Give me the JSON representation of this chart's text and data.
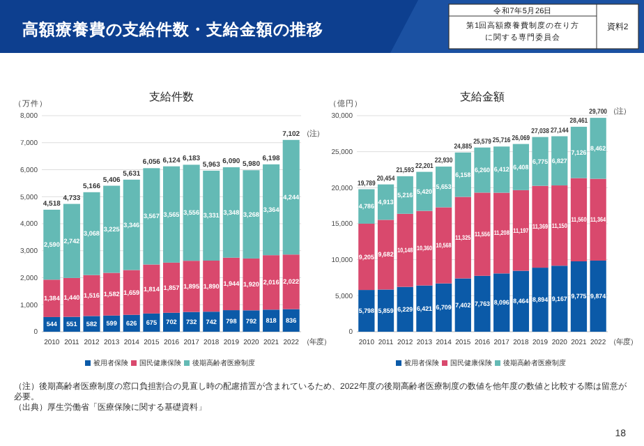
{
  "chart_data": [
    {
      "type": "other",
      "title": "高額療養費の支給件数・支給金額の推移",
      "annotations": [
        "令和7年5月26日",
        "第1回高額療養費制度の在り方に関する専門委員会",
        "資料2",
        "（注）後期高齢者医療制度の窓口負担割合の見直し時の配慮措置が含まれているため、2022年度の後期高齢者医療制度の数値を他年度の数値と比較する際は留意が必要。",
        "（出典）厚生労働省「医療保険に関する基礎資料」",
        "18"
      ]
    },
    {
      "type": "bar",
      "title": "支給件数",
      "ylabel": "（万件）",
      "xlabel": "（年度）",
      "stacked": true,
      "legend": "bottom",
      "grid": "y",
      "categories": [
        "2010",
        "2011",
        "2012",
        "2013",
        "2014",
        "2015",
        "2016",
        "2017",
        "2018",
        "2019",
        "2020",
        "2021",
        "2022"
      ],
      "ylim": [
        0,
        8000
      ],
      "yticks": [
        0,
        {
          "value": 1000,
          "label": "1,000"
        },
        {
          "value": 2000,
          "label": "2,000"
        },
        {
          "value": 3000,
          "label": "3,000"
        },
        {
          "value": 4000,
          "label": "4,000"
        },
        {
          "value": 5000,
          "label": "5,000"
        },
        {
          "value": 6000,
          "label": "6,000"
        },
        {
          "value": 7000,
          "label": "7,000"
        },
        {
          "value": 8000,
          "label": "8,000"
        }
      ],
      "series": [
        {
          "name": "被用者保険",
          "color": "#0b5aa8",
          "values": [
            544,
            551,
            582,
            599,
            626,
            675,
            702,
            732,
            742,
            798,
            792,
            818,
            836
          ],
          "value_labels": [
            "544",
            "551",
            "582",
            "599",
            "626",
            "675",
            "702",
            "732",
            "742",
            "798",
            "792",
            "818",
            "836"
          ]
        },
        {
          "name": "国民健康保険",
          "color": "#d9496d",
          "values": [
            1384,
            1440,
            1516,
            1582,
            1659,
            1814,
            1857,
            1895,
            1890,
            1944,
            1920,
            2016,
            2022
          ],
          "value_labels": [
            "1,384",
            "1,440",
            "1,516",
            "1,582",
            "1,659",
            "1,814",
            "1,857",
            "1,895",
            "1,890",
            "1,944",
            "1,920",
            "2,016",
            "2,022"
          ]
        },
        {
          "name": "後期高齢者医療制度",
          "color": "#64bab5",
          "values": [
            2590,
            2742,
            3068,
            3225,
            3346,
            3567,
            3565,
            3556,
            3331,
            3348,
            3268,
            3364,
            4244
          ],
          "value_labels": [
            "2,590",
            "2,742",
            "3,068",
            "3,225",
            "3,346",
            "3,567",
            "3,565",
            "3,556",
            "3,331",
            "3,348",
            "3,268",
            "3,364",
            "4,244"
          ]
        }
      ],
      "totals": [
        "4,518",
        "4,733",
        "5,166",
        "5,406",
        "5,631",
        "6,056",
        "6,124",
        "6,183",
        "5,963",
        "6,090",
        "5,980",
        "6,198",
        "7,102"
      ],
      "annotations": [
        {
          "text": "（注）",
          "x": "2022",
          "y": 7102
        }
      ]
    },
    {
      "type": "bar",
      "title": "支給金額",
      "ylabel": "（億円）",
      "xlabel": "（年度）",
      "stacked": true,
      "legend": "bottom",
      "grid": "y",
      "categories": [
        "2010",
        "2011",
        "2012",
        "2013",
        "2014",
        "2015",
        "2016",
        "2017",
        "2018",
        "2019",
        "2020",
        "2021",
        "2022"
      ],
      "ylim": [
        0,
        30000
      ],
      "yticks": [
        0,
        {
          "value": 5000,
          "label": "5,000"
        },
        {
          "value": 10000,
          "label": "10,000"
        },
        {
          "value": 15000,
          "label": "15,000"
        },
        {
          "value": 20000,
          "label": "20,000"
        },
        {
          "value": 25000,
          "label": "25,000"
        },
        {
          "value": 30000,
          "label": "30,000"
        }
      ],
      "series": [
        {
          "name": "被用者保険",
          "color": "#0b5aa8",
          "values": [
            5798,
            5859,
            6229,
            6421,
            6709,
            7402,
            7763,
            8096,
            8464,
            8894,
            9167,
            9775,
            9874
          ],
          "value_labels": [
            "5,798",
            "5,859",
            "6,229",
            "6,421",
            "6,709",
            "7,402",
            "7,763",
            "8,096",
            "8,464",
            "8,894",
            "9,167",
            "9,775",
            "9,874"
          ]
        },
        {
          "name": "国民健康保険",
          "color": "#d9496d",
          "values": [
            9205,
            9682,
            10148,
            10360,
            10568,
            11325,
            11556,
            11208,
            11197,
            11369,
            11150,
            11560,
            11364
          ],
          "value_labels": [
            "9,205",
            "9,682",
            "10,148",
            "10,360",
            "10,568",
            "11,325",
            "11,556",
            "11,208",
            "11,197",
            "11,369",
            "11,150",
            "11,560",
            "11,364"
          ]
        },
        {
          "name": "後期高齢者医療制度",
          "color": "#64bab5",
          "values": [
            4786,
            4913,
            5216,
            5420,
            5653,
            6158,
            6260,
            6412,
            6408,
            6775,
            6827,
            7126,
            8462
          ],
          "value_labels": [
            "4,786",
            "4,913",
            "5,216",
            "5,420",
            "5,653",
            "6,158",
            "6,260",
            "6,412",
            "6,408",
            "6,775",
            "6,827",
            "7,126",
            "8,462"
          ]
        }
      ],
      "totals": [
        "19,789",
        "20,454",
        "21,593",
        "22,201",
        "22,930",
        "24,885",
        "25,579",
        "25,716",
        "26,069",
        "27,038",
        "27,144",
        "28,461",
        "29,700"
      ],
      "annotations": [
        {
          "text": "（注）",
          "x": "2022",
          "y": 29700
        }
      ]
    }
  ]
}
